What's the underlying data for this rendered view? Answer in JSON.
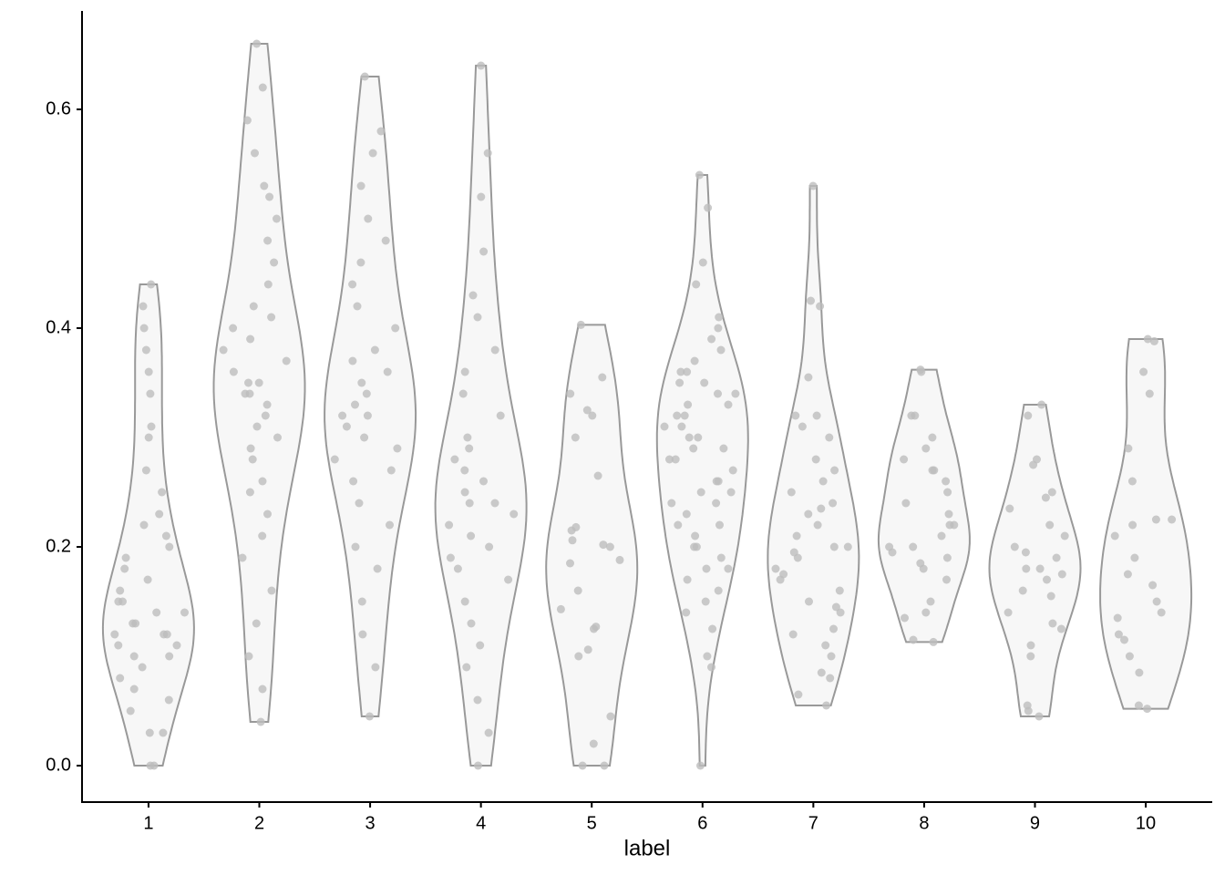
{
  "chart_data": {
    "type": "violin",
    "x_label": "label",
    "categories": [
      "1",
      "2",
      "3",
      "4",
      "5",
      "6",
      "7",
      "8",
      "9",
      "10"
    ],
    "values": [
      [
        0,
        0,
        0.03,
        0.03,
        0.05,
        0.06,
        0.07,
        0.08,
        0.09,
        0.1,
        0.1,
        0.11,
        0.11,
        0.12,
        0.12,
        0.12,
        0.13,
        0.13,
        0.14,
        0.14,
        0.15,
        0.15,
        0.16,
        0.17,
        0.18,
        0.19,
        0.2,
        0.21,
        0.22,
        0.23,
        0.25,
        0.27,
        0.3,
        0.31,
        0.34,
        0.36,
        0.38,
        0.4,
        0.42,
        0.44
      ],
      [
        0.04,
        0.07,
        0.1,
        0.13,
        0.16,
        0.19,
        0.21,
        0.23,
        0.25,
        0.26,
        0.28,
        0.29,
        0.3,
        0.31,
        0.32,
        0.33,
        0.34,
        0.34,
        0.35,
        0.35,
        0.36,
        0.37,
        0.38,
        0.39,
        0.4,
        0.41,
        0.42,
        0.44,
        0.46,
        0.48,
        0.5,
        0.52,
        0.53,
        0.56,
        0.59,
        0.62,
        0.66
      ],
      [
        0.045,
        0.09,
        0.12,
        0.15,
        0.18,
        0.2,
        0.22,
        0.24,
        0.26,
        0.27,
        0.28,
        0.29,
        0.3,
        0.31,
        0.32,
        0.32,
        0.33,
        0.34,
        0.35,
        0.36,
        0.37,
        0.38,
        0.4,
        0.42,
        0.44,
        0.46,
        0.48,
        0.5,
        0.53,
        0.56,
        0.58,
        0.63
      ],
      [
        0,
        0.03,
        0.06,
        0.09,
        0.11,
        0.13,
        0.15,
        0.17,
        0.18,
        0.19,
        0.2,
        0.21,
        0.22,
        0.23,
        0.24,
        0.24,
        0.25,
        0.26,
        0.27,
        0.28,
        0.29,
        0.3,
        0.32,
        0.34,
        0.36,
        0.38,
        0.41,
        0.43,
        0.47,
        0.52,
        0.56,
        0.64
      ],
      [
        0,
        0,
        0.02,
        0.045,
        0.1,
        0.106,
        0.125,
        0.127,
        0.143,
        0.16,
        0.185,
        0.188,
        0.2,
        0.202,
        0.206,
        0.215,
        0.218,
        0.265,
        0.3,
        0.32,
        0.325,
        0.34,
        0.355,
        0.403
      ],
      [
        0,
        0.09,
        0.1,
        0.125,
        0.14,
        0.15,
        0.16,
        0.17,
        0.18,
        0.18,
        0.19,
        0.2,
        0.2,
        0.21,
        0.22,
        0.22,
        0.23,
        0.24,
        0.24,
        0.25,
        0.25,
        0.26,
        0.26,
        0.27,
        0.28,
        0.28,
        0.29,
        0.29,
        0.3,
        0.3,
        0.31,
        0.31,
        0.32,
        0.32,
        0.33,
        0.33,
        0.34,
        0.34,
        0.35,
        0.35,
        0.36,
        0.36,
        0.37,
        0.38,
        0.39,
        0.4,
        0.41,
        0.44,
        0.46,
        0.51,
        0.54
      ],
      [
        0.055,
        0.065,
        0.08,
        0.085,
        0.1,
        0.11,
        0.12,
        0.125,
        0.14,
        0.145,
        0.15,
        0.16,
        0.17,
        0.175,
        0.18,
        0.19,
        0.195,
        0.2,
        0.2,
        0.21,
        0.22,
        0.23,
        0.235,
        0.24,
        0.25,
        0.26,
        0.27,
        0.28,
        0.3,
        0.31,
        0.32,
        0.32,
        0.355,
        0.42,
        0.425,
        0.53
      ],
      [
        0.113,
        0.115,
        0.135,
        0.14,
        0.15,
        0.17,
        0.18,
        0.185,
        0.19,
        0.195,
        0.2,
        0.2,
        0.21,
        0.22,
        0.22,
        0.23,
        0.24,
        0.25,
        0.26,
        0.27,
        0.27,
        0.28,
        0.29,
        0.3,
        0.32,
        0.32,
        0.36,
        0.362
      ],
      [
        0.045,
        0.05,
        0.055,
        0.1,
        0.11,
        0.125,
        0.13,
        0.14,
        0.155,
        0.16,
        0.17,
        0.175,
        0.18,
        0.18,
        0.19,
        0.195,
        0.2,
        0.21,
        0.22,
        0.235,
        0.245,
        0.25,
        0.275,
        0.28,
        0.32,
        0.33
      ],
      [
        0.052,
        0.055,
        0.085,
        0.1,
        0.115,
        0.12,
        0.135,
        0.14,
        0.15,
        0.165,
        0.175,
        0.19,
        0.21,
        0.22,
        0.225,
        0.225,
        0.26,
        0.29,
        0.34,
        0.36,
        0.388,
        0.39
      ]
    ],
    "color": "#f7f7f7",
    "edge_color": "#999999",
    "point_color": "#bdbdbd",
    "ylim": [
      -0.0333,
      0.69
    ],
    "yticks": [
      {
        "value": 0,
        "label": "0.0"
      },
      0.2,
      0.4,
      0.6
    ]
  }
}
